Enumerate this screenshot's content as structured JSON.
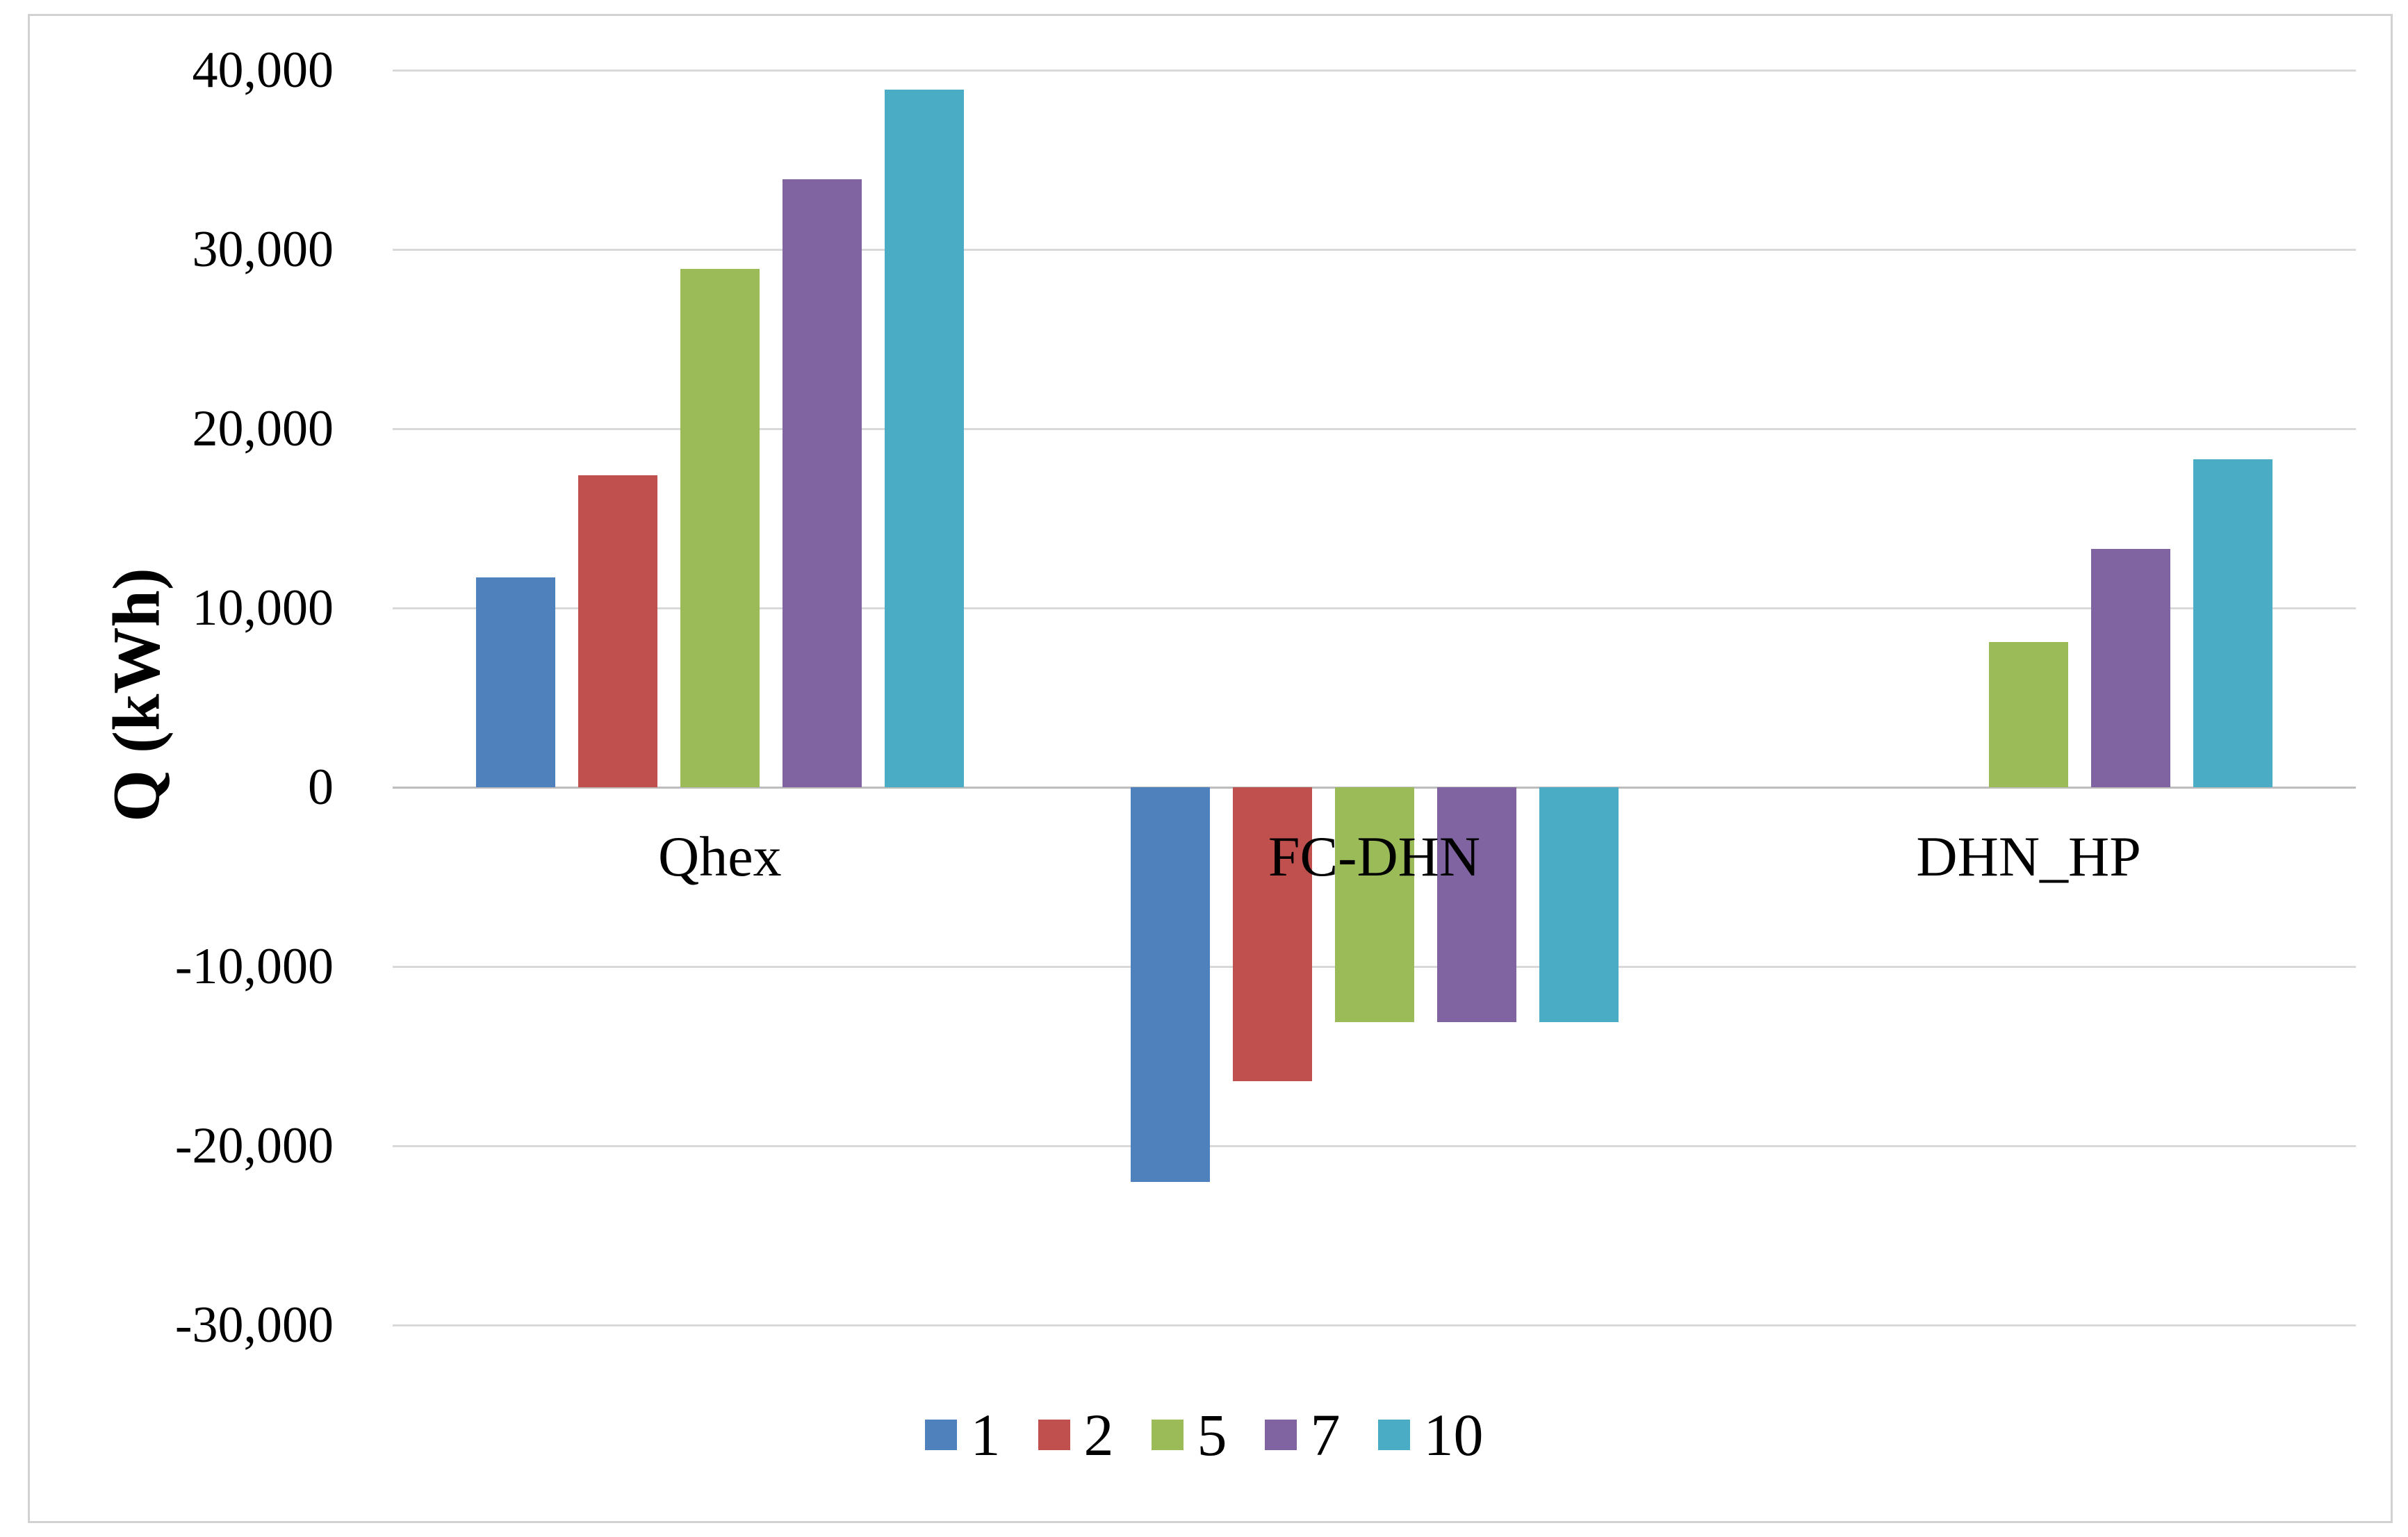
{
  "chart_data": {
    "type": "bar",
    "title": "",
    "ylabel": "Q (kWh)",
    "categories": [
      "Qhex",
      "FC-DHN",
      "DHN_HP"
    ],
    "series": [
      {
        "name": "1",
        "color": "#4F81BD",
        "values": [
          11700,
          -22000,
          0
        ]
      },
      {
        "name": "2",
        "color": "#C0504D",
        "values": [
          17400,
          -16400,
          0
        ]
      },
      {
        "name": "5",
        "color": "#9BBB59",
        "values": [
          28900,
          -13100,
          8100
        ]
      },
      {
        "name": "7",
        "color": "#8064A2",
        "values": [
          33900,
          -13100,
          13300
        ]
      },
      {
        "name": "10",
        "color": "#4BACC6",
        "values": [
          38900,
          -13100,
          18300
        ]
      }
    ],
    "y_axis": {
      "min": -30000,
      "max": 40000,
      "step": 10000,
      "tick_labels": [
        "40,000",
        "30,000",
        "20,000",
        "10,000",
        "0",
        "-10,000",
        "-20,000",
        "-30,000"
      ]
    },
    "legend": {
      "position": "bottom",
      "labels": [
        "1",
        "2",
        "5",
        "7",
        "10"
      ]
    },
    "grid": true
  },
  "colors": {
    "gridline": "#d9d9d9",
    "zero_line": "#bdbdbd",
    "frame_border": "#d2d2d2",
    "text": "#000000",
    "background": "#ffffff"
  }
}
